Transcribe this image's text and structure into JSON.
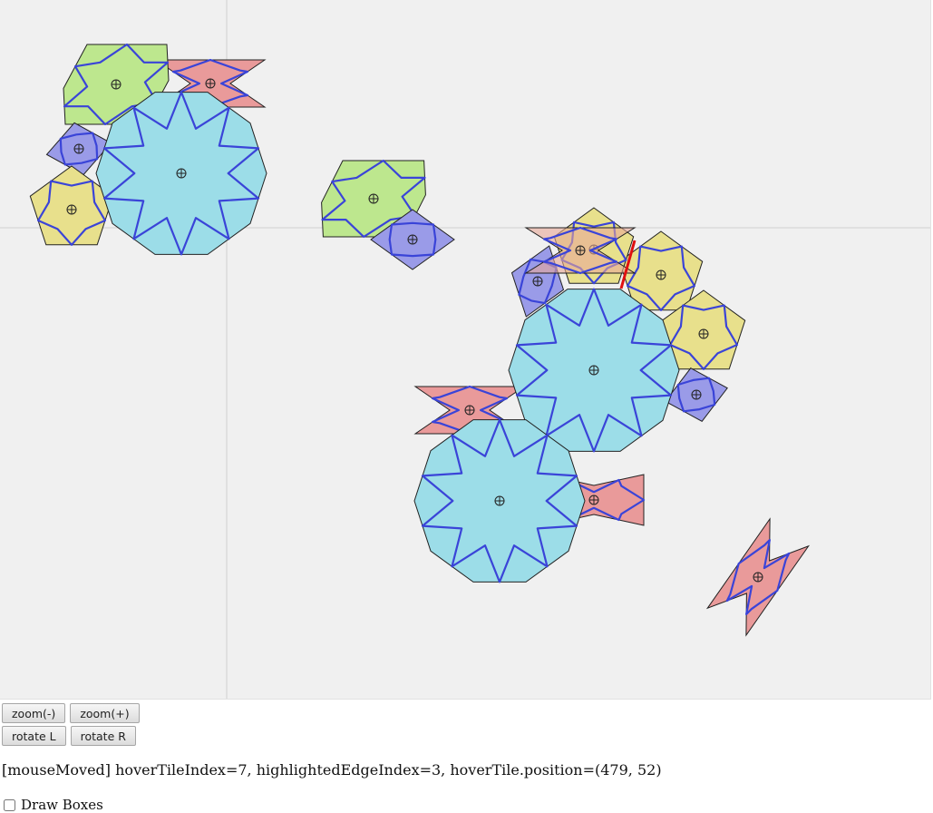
{
  "canvas": {
    "background": "#f0f0f0",
    "guide_color": "#d0d0d0",
    "tiles": [
      {
        "shape": "decagon",
        "color": "#9cdde8"
      },
      {
        "shape": "decagon",
        "color": "#9cdde8"
      },
      {
        "shape": "decagon",
        "color": "#9cdde8"
      },
      {
        "shape": "hexagon",
        "color": "#bde78e"
      },
      {
        "shape": "hexagon",
        "color": "#bde78e"
      },
      {
        "shape": "pentagon",
        "color": "#e8e08c"
      },
      {
        "shape": "pentagon",
        "color": "#e8e08c"
      },
      {
        "shape": "pentagon",
        "color": "#e8e08c"
      },
      {
        "shape": "pentagon",
        "color": "#e8e08c"
      },
      {
        "shape": "rhombus",
        "color": "#9a9be8"
      },
      {
        "shape": "rhombus",
        "color": "#9a9be8"
      },
      {
        "shape": "rhombus",
        "color": "#9a9be8"
      },
      {
        "shape": "rhombus",
        "color": "#9a9be8"
      },
      {
        "shape": "bowtie",
        "color": "#e99a9a"
      },
      {
        "shape": "bowtie",
        "color": "#e99a9a"
      },
      {
        "shape": "bowtie",
        "color": "#e99a9a"
      },
      {
        "shape": "bowtie",
        "color": "#e99a9a"
      }
    ],
    "motif_color": "#3a44d8",
    "highlight_edge_color": "#e01010",
    "hover_tile_color": "#e8a898"
  },
  "buttons": {
    "zoom_out": "zoom(-)",
    "zoom_in": "zoom(+)",
    "rotate_left": "rotate L",
    "rotate_right": "rotate R"
  },
  "status": {
    "text": "[mouseMoved] hoverTileIndex=7, highlightedEdgeIndex=3, hoverTile.position=(479, 52)"
  },
  "options": {
    "draw_boxes_label": "Draw Boxes",
    "draw_boxes_checked": false
  }
}
